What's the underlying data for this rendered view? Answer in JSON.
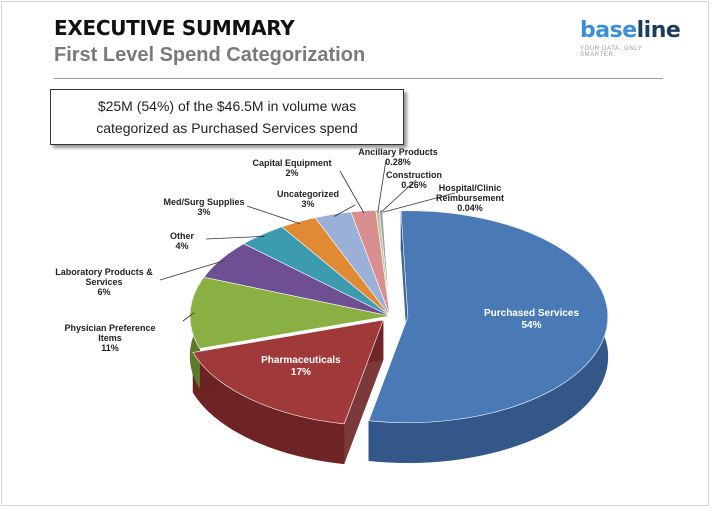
{
  "header": {
    "title": "EXECUTIVE SUMMARY",
    "subtitle": "First Level Spend Categorization"
  },
  "logo": {
    "word_part1": "base",
    "word_part2": "line",
    "tagline": "YOUR DATA. ONLY SMARTER."
  },
  "callout": {
    "line1": "$25M (54%) of the $46.5M in volume was",
    "line2": "categorized as Purchased Services spend"
  },
  "chart_data": {
    "type": "pie",
    "title": "",
    "slices": [
      {
        "label": "Purchased Services",
        "label_lines": [
          "Purchased Services"
        ],
        "value": 54,
        "display": "54%",
        "color": "#4a7ab5",
        "side": "#34578a",
        "label_style": "inside"
      },
      {
        "label": "Pharmaceuticals",
        "label_lines": [
          "Pharmaceuticals"
        ],
        "value": 17,
        "display": "17%",
        "color": "#a0393a",
        "side": "#6e2424",
        "label_style": "inside"
      },
      {
        "label": "Physician Preference Items",
        "label_lines": [
          "Physician Preference",
          "Items"
        ],
        "value": 11,
        "display": "11%",
        "color": "#8aaf43",
        "side": "#5d7a2a",
        "label_style": "outside"
      },
      {
        "label": "Laboratory Products & Services",
        "label_lines": [
          "Laboratory Products  &",
          "Services"
        ],
        "value": 6,
        "display": "6%",
        "color": "#6e4f94",
        "side": "#4b3566",
        "label_style": "outside"
      },
      {
        "label": "Other",
        "label_lines": [
          "Other"
        ],
        "value": 4,
        "display": "4%",
        "color": "#3d9bb0",
        "side": "#296a79",
        "label_style": "outside"
      },
      {
        "label": "Med/Surg Supplies",
        "label_lines": [
          "Med/Surg Supplies"
        ],
        "value": 3,
        "display": "3%",
        "color": "#e08a35",
        "side": "#a45f1f",
        "label_style": "outside"
      },
      {
        "label": "Uncategorized",
        "label_lines": [
          "Uncategorized"
        ],
        "value": 3,
        "display": "3%",
        "color": "#9bb0d6",
        "side": "#6b7ea3",
        "label_style": "outside"
      },
      {
        "label": "Capital Equipment",
        "label_lines": [
          "Capital Equipment"
        ],
        "value": 2,
        "display": "2%",
        "color": "#d98f8f",
        "side": "#9f5f5f",
        "label_style": "outside"
      },
      {
        "label": "Ancillary Products",
        "label_lines": [
          "Ancillary Products"
        ],
        "value": 0.28,
        "display": "0.28%",
        "color": "#b8cc8a",
        "side": "#869660",
        "label_style": "outside"
      },
      {
        "label": "Construction",
        "label_lines": [
          "Construction"
        ],
        "value": 0.26,
        "display": "0.26%",
        "color": "#a795c2",
        "side": "#74668a",
        "label_style": "outside"
      },
      {
        "label": "Hospital/Clinic Reimbursement",
        "label_lines": [
          "Hospital/Clinic",
          "Reimbursement"
        ],
        "value": 0.04,
        "display": "0.04%",
        "color": "#86c2d2",
        "side": "#5a8d9a",
        "label_style": "outside"
      }
    ]
  }
}
